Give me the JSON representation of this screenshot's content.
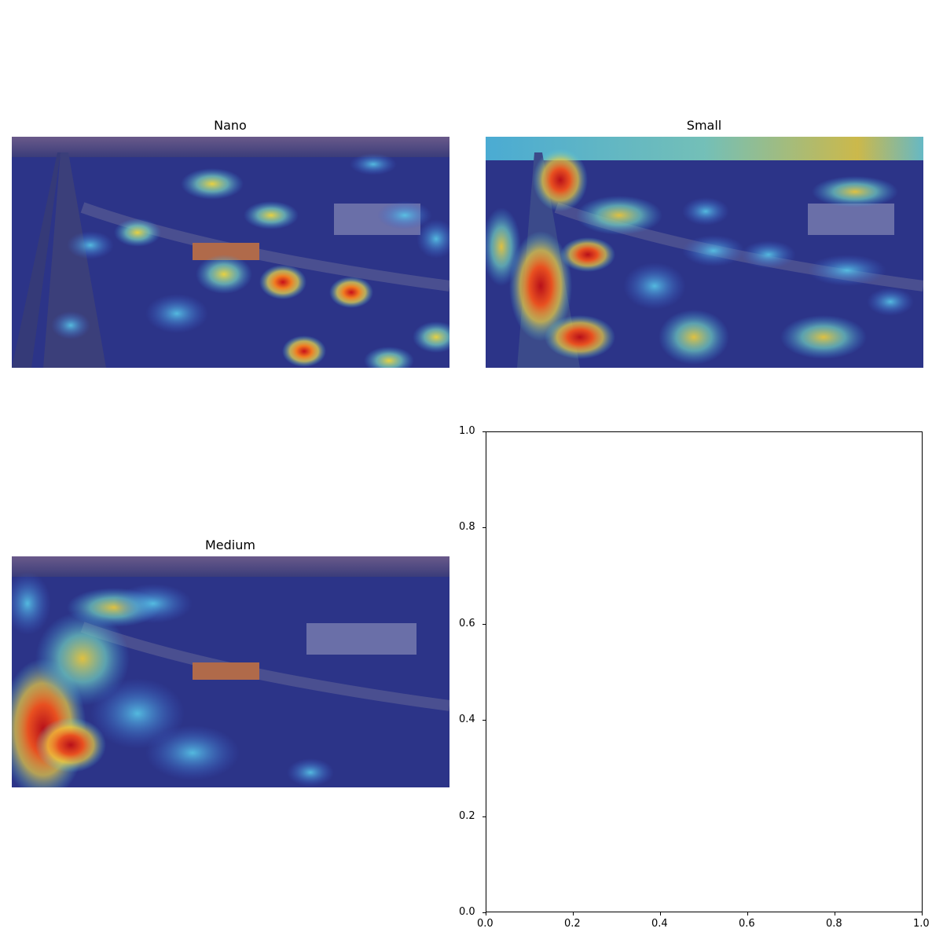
{
  "figure": {
    "panels": [
      {
        "title": "Nano"
      },
      {
        "title": "Small"
      },
      {
        "title": "Medium"
      }
    ],
    "empty_axes": {
      "x_ticks": [
        "0.0",
        "0.2",
        "0.4",
        "0.6",
        "0.8",
        "1.0"
      ],
      "y_ticks": [
        "0.0",
        "0.2",
        "0.4",
        "0.6",
        "0.8",
        "1.0"
      ],
      "xlim": [
        0,
        1
      ],
      "ylim": [
        0,
        1
      ]
    }
  },
  "colors": {
    "overlay_base": "#2a2f8a",
    "hot": "#d7191c",
    "warm": "#fdae61",
    "cool": "#5bc0de"
  }
}
